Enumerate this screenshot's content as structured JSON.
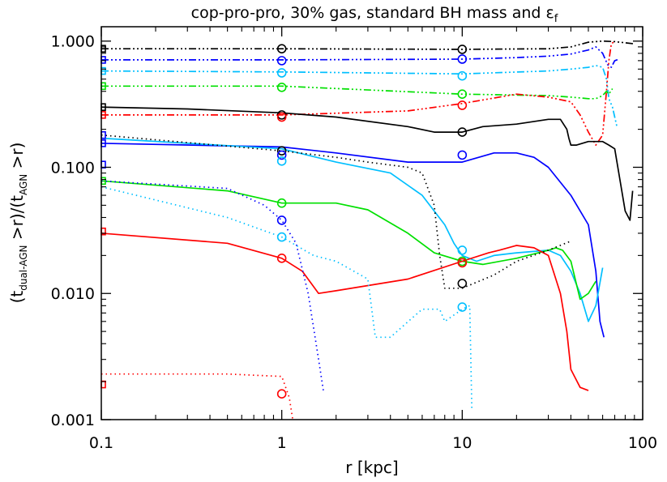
{
  "chart_data": {
    "type": "line",
    "title": "cop-pro-pro, 30% gas, standard BH mass and ε",
    "title_subscript": "f",
    "xlabel": "r [kpc]",
    "ylabel_parts": {
      "open1": "(t",
      "sub1": "dual-AGN",
      "mid": " >r)/(t",
      "sub2": "AGN",
      "close": " >r)"
    },
    "xscale": "log",
    "yscale": "log",
    "xlim": [
      0.1,
      100
    ],
    "ylim": [
      0.001,
      1.3
    ],
    "xticks": [
      {
        "value": 0.1,
        "label": "0.1"
      },
      {
        "value": 1,
        "label": "1"
      },
      {
        "value": 10,
        "label": "10"
      },
      {
        "value": 100,
        "label": "100"
      }
    ],
    "yticks": [
      {
        "value": 0.001,
        "label": "0.001"
      },
      {
        "value": 0.01,
        "label": "0.010"
      },
      {
        "value": 0.1,
        "label": "0.100"
      },
      {
        "value": 1,
        "label": "1.000"
      }
    ],
    "grid": false,
    "legend": "none",
    "series": [
      {
        "color": "#000000",
        "style": "dashdotdotdot",
        "x": [
          0.1,
          1,
          10,
          30,
          40,
          50,
          60,
          70,
          80,
          90
        ],
        "y": [
          0.87,
          0.87,
          0.86,
          0.87,
          0.9,
          0.98,
          1.0,
          0.99,
          0.97,
          0.95
        ]
      },
      {
        "color": "#0000ff",
        "style": "dashdotdotdot",
        "x": [
          0.1,
          1,
          10,
          20,
          30,
          40,
          50,
          55,
          60,
          64,
          67,
          70,
          74
        ],
        "y": [
          0.71,
          0.71,
          0.72,
          0.74,
          0.76,
          0.79,
          0.85,
          0.9,
          0.8,
          0.65,
          0.62,
          0.7,
          0.72
        ]
      },
      {
        "color": "#00bfff",
        "style": "dashdotdotdot",
        "x": [
          0.1,
          1,
          10,
          30,
          40,
          50,
          55,
          60,
          63,
          65,
          68,
          70,
          72
        ],
        "y": [
          0.58,
          0.57,
          0.55,
          0.58,
          0.6,
          0.62,
          0.64,
          0.62,
          0.5,
          0.35,
          0.3,
          0.25,
          0.21
        ]
      },
      {
        "color": "#00e000",
        "style": "dashdotdotdot",
        "x": [
          0.1,
          1,
          10,
          30,
          40,
          50,
          55,
          60,
          63,
          65,
          68
        ],
        "y": [
          0.44,
          0.44,
          0.38,
          0.37,
          0.36,
          0.35,
          0.35,
          0.37,
          0.4,
          0.38,
          0.42
        ]
      },
      {
        "color": "#ff0000",
        "style": "dashdotdotdot",
        "x": [
          0.1,
          1,
          5,
          10,
          20,
          30,
          40,
          45,
          50,
          55,
          60,
          63,
          65,
          67,
          70
        ],
        "y": [
          0.26,
          0.26,
          0.28,
          0.32,
          0.38,
          0.36,
          0.33,
          0.26,
          0.19,
          0.15,
          0.18,
          0.4,
          0.7,
          0.95,
          1.0
        ]
      },
      {
        "color": "#000000",
        "style": "solid",
        "x": [
          0.1,
          0.3,
          1,
          2,
          5,
          7,
          9,
          10,
          13,
          20,
          30,
          35,
          38,
          39,
          40,
          43,
          50,
          60,
          65,
          70,
          80,
          85,
          88
        ],
        "y": [
          0.3,
          0.29,
          0.27,
          0.25,
          0.21,
          0.19,
          0.19,
          0.19,
          0.21,
          0.22,
          0.24,
          0.24,
          0.2,
          0.17,
          0.15,
          0.15,
          0.16,
          0.16,
          0.15,
          0.14,
          0.045,
          0.038,
          0.065
        ]
      },
      {
        "color": "#0000ff",
        "style": "solid",
        "x": [
          0.1,
          1,
          2,
          5,
          10,
          15,
          20,
          25,
          30,
          40,
          50,
          55,
          58,
          61
        ],
        "y": [
          0.155,
          0.145,
          0.13,
          0.11,
          0.11,
          0.13,
          0.13,
          0.12,
          0.1,
          0.06,
          0.035,
          0.015,
          0.006,
          0.0045
        ]
      },
      {
        "color": "#00bfff",
        "style": "solid",
        "x": [
          0.1,
          1,
          2,
          4,
          6,
          8,
          9,
          10,
          12,
          15,
          20,
          30,
          35,
          40,
          45,
          50,
          55,
          60
        ],
        "y": [
          0.17,
          0.14,
          0.11,
          0.09,
          0.06,
          0.035,
          0.025,
          0.02,
          0.018,
          0.02,
          0.021,
          0.022,
          0.02,
          0.015,
          0.01,
          0.006,
          0.008,
          0.016
        ]
      },
      {
        "color": "#00e000",
        "style": "solid",
        "x": [
          0.1,
          0.5,
          1,
          2,
          3,
          5,
          7,
          10,
          13,
          20,
          30,
          33,
          36,
          40,
          45,
          50,
          55
        ],
        "y": [
          0.078,
          0.065,
          0.052,
          0.052,
          0.046,
          0.03,
          0.021,
          0.018,
          0.017,
          0.019,
          0.022,
          0.023,
          0.022,
          0.018,
          0.009,
          0.01,
          0.0125
        ]
      },
      {
        "color": "#ff0000",
        "style": "solid",
        "x": [
          0.1,
          0.5,
          1,
          1.3,
          1.6,
          2,
          5,
          10,
          14,
          16,
          20,
          25,
          30,
          35,
          38,
          40,
          45,
          50
        ],
        "y": [
          0.03,
          0.025,
          0.019,
          0.015,
          0.01,
          0.0105,
          0.013,
          0.018,
          0.021,
          0.022,
          0.024,
          0.023,
          0.02,
          0.01,
          0.005,
          0.0025,
          0.0018,
          0.0017
        ]
      },
      {
        "color": "#000000",
        "style": "dotted",
        "x": [
          0.1,
          1,
          2,
          3,
          5,
          6,
          7,
          7.5,
          8,
          10,
          15,
          20,
          30,
          40
        ],
        "y": [
          0.18,
          0.135,
          0.12,
          0.11,
          0.1,
          0.09,
          0.05,
          0.02,
          0.011,
          0.011,
          0.014,
          0.018,
          0.022,
          0.026
        ]
      },
      {
        "color": "#0000ff",
        "style": "dotted",
        "x": [
          0.1,
          0.5,
          0.8,
          1,
          1.2,
          1.4,
          1.6,
          1.7
        ],
        "y": [
          0.078,
          0.068,
          0.05,
          0.038,
          0.025,
          0.01,
          0.003,
          0.0017
        ]
      },
      {
        "color": "#00bfff",
        "style": "dotted",
        "x": [
          0.1,
          0.5,
          1,
          1.5,
          2,
          3,
          3.3,
          4,
          6,
          7.5,
          8,
          10,
          11,
          11.3
        ],
        "y": [
          0.07,
          0.04,
          0.028,
          0.02,
          0.018,
          0.013,
          0.0045,
          0.0045,
          0.0075,
          0.0075,
          0.006,
          0.0075,
          0.008,
          0.0012
        ]
      },
      {
        "color": "#ff0000",
        "style": "dotted",
        "x": [
          0.1,
          0.5,
          1,
          1.1,
          1.15
        ],
        "y": [
          0.0023,
          0.0023,
          0.0022,
          0.0015,
          0.001
        ]
      }
    ],
    "circle_markers": [
      {
        "x": 1,
        "y": 0.87,
        "color": "#000000"
      },
      {
        "x": 1,
        "y": 0.7,
        "color": "#0000ff"
      },
      {
        "x": 1,
        "y": 0.56,
        "color": "#00bfff"
      },
      {
        "x": 1,
        "y": 0.43,
        "color": "#00e000"
      },
      {
        "x": 1,
        "y": 0.26,
        "color": "#000000"
      },
      {
        "x": 1,
        "y": 0.25,
        "color": "#ff0000"
      },
      {
        "x": 1,
        "y": 0.135,
        "color": "#000000"
      },
      {
        "x": 1,
        "y": 0.125,
        "color": "#0000ff"
      },
      {
        "x": 1,
        "y": 0.112,
        "color": "#00bfff"
      },
      {
        "x": 1,
        "y": 0.052,
        "color": "#00e000"
      },
      {
        "x": 1,
        "y": 0.038,
        "color": "#0000ff"
      },
      {
        "x": 1,
        "y": 0.028,
        "color": "#00bfff"
      },
      {
        "x": 1,
        "y": 0.019,
        "color": "#ff0000"
      },
      {
        "x": 1,
        "y": 0.0016,
        "color": "#ff0000"
      },
      {
        "x": 10,
        "y": 0.86,
        "color": "#000000"
      },
      {
        "x": 10,
        "y": 0.72,
        "color": "#0000ff"
      },
      {
        "x": 10,
        "y": 0.53,
        "color": "#00bfff"
      },
      {
        "x": 10,
        "y": 0.38,
        "color": "#00e000"
      },
      {
        "x": 10,
        "y": 0.31,
        "color": "#ff0000"
      },
      {
        "x": 10,
        "y": 0.19,
        "color": "#000000"
      },
      {
        "x": 10,
        "y": 0.125,
        "color": "#0000ff"
      },
      {
        "x": 10,
        "y": 0.022,
        "color": "#00bfff"
      },
      {
        "x": 10,
        "y": 0.018,
        "color": "#00e000"
      },
      {
        "x": 10,
        "y": 0.0175,
        "color": "#ff0000"
      },
      {
        "x": 10,
        "y": 0.012,
        "color": "#000000"
      },
      {
        "x": 10,
        "y": 0.0078,
        "color": "#00bfff"
      }
    ],
    "square_markers": [
      {
        "y": 0.87,
        "color": "#000000"
      },
      {
        "y": 0.71,
        "color": "#0000ff"
      },
      {
        "y": 0.58,
        "color": "#00bfff"
      },
      {
        "y": 0.44,
        "color": "#00e000"
      },
      {
        "y": 0.3,
        "color": "#000000"
      },
      {
        "y": 0.26,
        "color": "#ff0000"
      },
      {
        "y": 0.18,
        "color": "#0000ff"
      },
      {
        "y": 0.155,
        "color": "#0000ff"
      },
      {
        "y": 0.105,
        "color": "#0000ff"
      },
      {
        "y": 0.078,
        "color": "#00e000"
      },
      {
        "y": 0.031,
        "color": "#ff0000"
      },
      {
        "y": 0.0019,
        "color": "#ff0000"
      }
    ]
  }
}
